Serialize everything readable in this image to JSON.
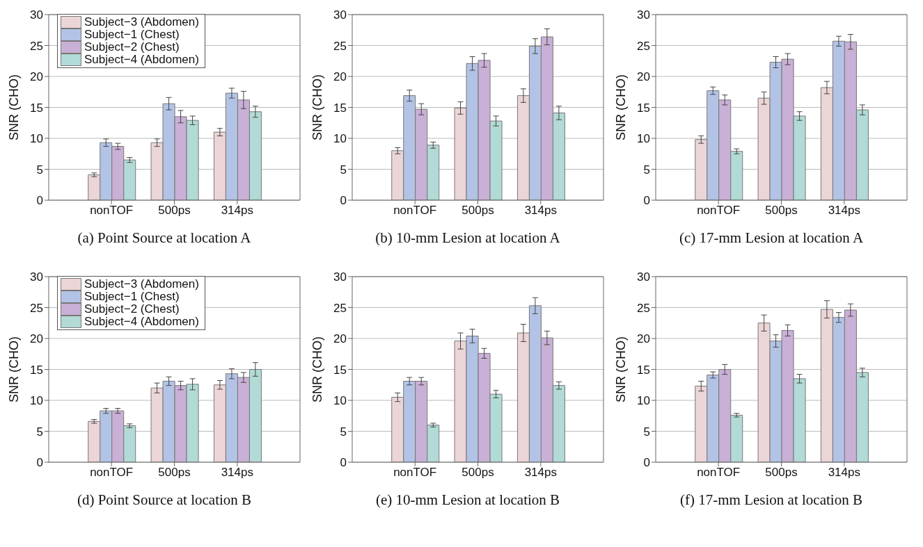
{
  "chart_data": [
    {
      "type": "bar",
      "title": "(a) Point Source at location A",
      "ylabel": "SNR (CHO)",
      "categories": [
        "nonTOF",
        "500ps",
        "314ps"
      ],
      "ylim": [
        0,
        30
      ],
      "yticks": [
        0,
        5,
        10,
        15,
        20,
        25,
        30
      ],
      "grid": "y",
      "legend": "top left",
      "series": [
        {
          "name": "Subject−3 (Abdomen)",
          "color": "#ecd5d6",
          "values": [
            4.1,
            9.3,
            11.0
          ],
          "errors": [
            0.3,
            0.6,
            0.6
          ]
        },
        {
          "name": "Subject−1 (Chest)",
          "color": "#b3c3e6",
          "values": [
            9.3,
            15.6,
            17.3
          ],
          "errors": [
            0.6,
            1.0,
            0.8
          ]
        },
        {
          "name": "Subject−2 (Chest)",
          "color": "#c9b0d6",
          "values": [
            8.7,
            13.5,
            16.2
          ],
          "errors": [
            0.5,
            1.0,
            1.4
          ]
        },
        {
          "name": "Subject−4 (Abdomen)",
          "color": "#b2dad6",
          "values": [
            6.5,
            12.9,
            14.3
          ],
          "errors": [
            0.4,
            0.7,
            0.9
          ]
        }
      ]
    },
    {
      "type": "bar",
      "title": "(b) 10-mm Lesion at location A",
      "ylabel": "SNR (CHO)",
      "categories": [
        "nonTOF",
        "500ps",
        "314ps"
      ],
      "ylim": [
        0,
        30
      ],
      "yticks": [
        0,
        5,
        10,
        15,
        20,
        25,
        30
      ],
      "grid": "y",
      "series": [
        {
          "color": "#ecd5d6",
          "values": [
            8.0,
            14.9,
            16.9
          ],
          "errors": [
            0.5,
            1.0,
            1.1
          ]
        },
        {
          "color": "#b3c3e6",
          "values": [
            16.9,
            22.1,
            24.9
          ],
          "errors": [
            0.9,
            1.1,
            1.2
          ]
        },
        {
          "color": "#c9b0d6",
          "values": [
            14.7,
            22.6,
            26.4
          ],
          "errors": [
            0.9,
            1.1,
            1.3
          ]
        },
        {
          "color": "#b2dad6",
          "values": [
            8.9,
            12.8,
            14.1
          ],
          "errors": [
            0.5,
            0.8,
            1.1
          ]
        }
      ]
    },
    {
      "type": "bar",
      "title": "(c) 17-mm Lesion at location A",
      "ylabel": "SNR (CHO)",
      "categories": [
        "nonTOF",
        "500ps",
        "314ps"
      ],
      "ylim": [
        0,
        30
      ],
      "yticks": [
        0,
        5,
        10,
        15,
        20,
        25,
        30
      ],
      "grid": "y",
      "series": [
        {
          "color": "#ecd5d6",
          "values": [
            9.8,
            16.5,
            18.2
          ],
          "errors": [
            0.6,
            1.0,
            1.0
          ]
        },
        {
          "color": "#b3c3e6",
          "values": [
            17.7,
            22.3,
            25.7
          ],
          "errors": [
            0.6,
            0.9,
            0.8
          ]
        },
        {
          "color": "#c9b0d6",
          "values": [
            16.2,
            22.8,
            25.6
          ],
          "errors": [
            0.8,
            0.9,
            1.2
          ]
        },
        {
          "color": "#b2dad6",
          "values": [
            7.9,
            13.6,
            14.6
          ],
          "errors": [
            0.4,
            0.7,
            0.8
          ]
        }
      ]
    },
    {
      "type": "bar",
      "title": "(d) Point Source at location B",
      "ylabel": "SNR (CHO)",
      "categories": [
        "nonTOF",
        "500ps",
        "314ps"
      ],
      "ylim": [
        0,
        30
      ],
      "yticks": [
        0,
        5,
        10,
        15,
        20,
        25,
        30
      ],
      "grid": "y",
      "legend": "top left",
      "series": [
        {
          "name": "Subject−3 (Abdomen)",
          "color": "#ecd5d6",
          "values": [
            6.6,
            12.0,
            12.5
          ],
          "errors": [
            0.3,
            0.8,
            0.7
          ]
        },
        {
          "name": "Subject−1 (Chest)",
          "color": "#b3c3e6",
          "values": [
            8.3,
            13.1,
            14.3
          ],
          "errors": [
            0.4,
            0.7,
            0.8
          ]
        },
        {
          "name": "Subject−2 (Chest)",
          "color": "#c9b0d6",
          "values": [
            8.3,
            12.4,
            13.7
          ],
          "errors": [
            0.4,
            0.7,
            0.8
          ]
        },
        {
          "name": "Subject−4 (Abdomen)",
          "color": "#b2dad6",
          "values": [
            5.9,
            12.6,
            15.0
          ],
          "errors": [
            0.3,
            0.9,
            1.1
          ]
        }
      ]
    },
    {
      "type": "bar",
      "title": "(e) 10-mm Lesion at location B",
      "ylabel": "SNR (CHO)",
      "categories": [
        "nonTOF",
        "500ps",
        "314ps"
      ],
      "ylim": [
        0,
        30
      ],
      "yticks": [
        0,
        5,
        10,
        15,
        20,
        25,
        30
      ],
      "grid": "y",
      "series": [
        {
          "color": "#ecd5d6",
          "values": [
            10.5,
            19.6,
            20.9
          ],
          "errors": [
            0.7,
            1.3,
            1.4
          ]
        },
        {
          "color": "#b3c3e6",
          "values": [
            13.1,
            20.4,
            25.3
          ],
          "errors": [
            0.6,
            1.1,
            1.3
          ]
        },
        {
          "color": "#c9b0d6",
          "values": [
            13.1,
            17.6,
            20.1
          ],
          "errors": [
            0.6,
            0.8,
            1.1
          ]
        },
        {
          "color": "#b2dad6",
          "values": [
            6.0,
            11.0,
            12.4
          ],
          "errors": [
            0.3,
            0.6,
            0.6
          ]
        }
      ]
    },
    {
      "type": "bar",
      "title": "(f) 17-mm Lesion at location B",
      "ylabel": "SNR (CHO)",
      "categories": [
        "nonTOF",
        "500ps",
        "314ps"
      ],
      "ylim": [
        0,
        30
      ],
      "yticks": [
        0,
        5,
        10,
        15,
        20,
        25,
        30
      ],
      "grid": "y",
      "series": [
        {
          "color": "#ecd5d6",
          "values": [
            12.3,
            22.5,
            24.7
          ],
          "errors": [
            0.8,
            1.3,
            1.4
          ]
        },
        {
          "color": "#b3c3e6",
          "values": [
            14.1,
            19.6,
            23.4
          ],
          "errors": [
            0.5,
            1.0,
            0.8
          ]
        },
        {
          "color": "#c9b0d6",
          "values": [
            15.0,
            21.3,
            24.6
          ],
          "errors": [
            0.8,
            0.9,
            1.0
          ]
        },
        {
          "color": "#b2dad6",
          "values": [
            7.6,
            13.5,
            14.5
          ],
          "errors": [
            0.3,
            0.7,
            0.7
          ]
        }
      ]
    }
  ]
}
